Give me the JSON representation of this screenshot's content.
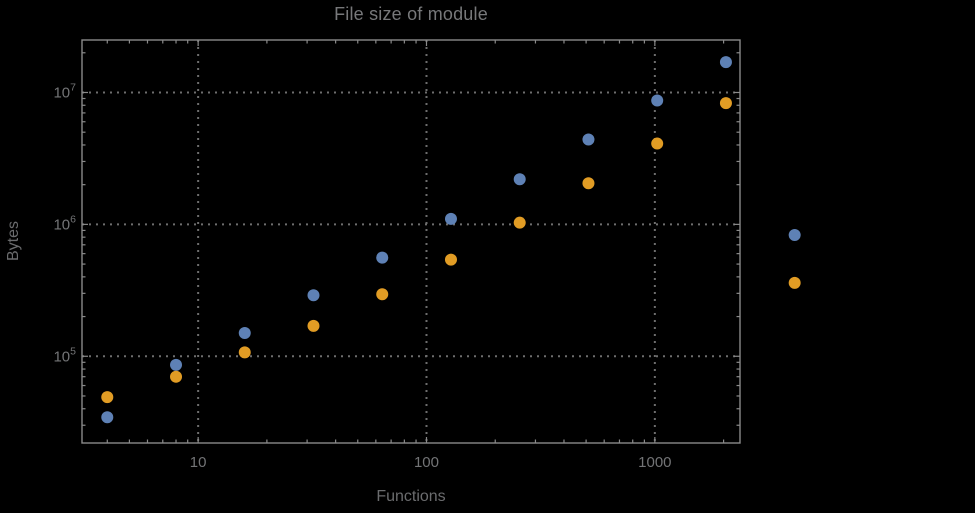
{
  "chart_data": {
    "type": "scatter",
    "title": "File size of module",
    "xlabel": "Functions",
    "ylabel": "Bytes",
    "xscale": "log",
    "yscale": "log",
    "xlim": [
      3.1,
      2360
    ],
    "ylim": [
      22000,
      25000000
    ],
    "grid": {
      "on_major": true,
      "style": "dotted"
    },
    "legend": "none",
    "x_ticks": [
      {
        "value": 10,
        "label": "10"
      },
      {
        "value": 100,
        "label": "100"
      },
      {
        "value": 1000,
        "label": "1000"
      }
    ],
    "y_ticks": [
      {
        "value": 100000,
        "label": "10^5"
      },
      {
        "value": 1000000,
        "label": "10^6"
      },
      {
        "value": 10000000,
        "label": "10^7"
      }
    ],
    "x": [
      4,
      8,
      16,
      32,
      64,
      128,
      256,
      512,
      1024,
      2048,
      4096
    ],
    "series": [
      {
        "name": "series-1",
        "color": "#5e81b5",
        "values": [
          34500,
          86000,
          150000,
          290000,
          560000,
          1100000,
          2200000,
          4400000,
          8700000,
          17000000,
          830000
        ]
      },
      {
        "name": "series-2",
        "color": "#e19c24",
        "values": [
          49000,
          70000,
          107000,
          170000,
          295000,
          540000,
          1030000,
          2050000,
          4100000,
          8300000,
          360000
        ]
      }
    ]
  },
  "colors": {
    "background": "#000000",
    "frame": "#8a8a8a",
    "grid": "#6e6e6e",
    "tick_text": "#737476",
    "title_text": "#77787a",
    "series1": "#5e81b5",
    "series2": "#e19c24"
  }
}
